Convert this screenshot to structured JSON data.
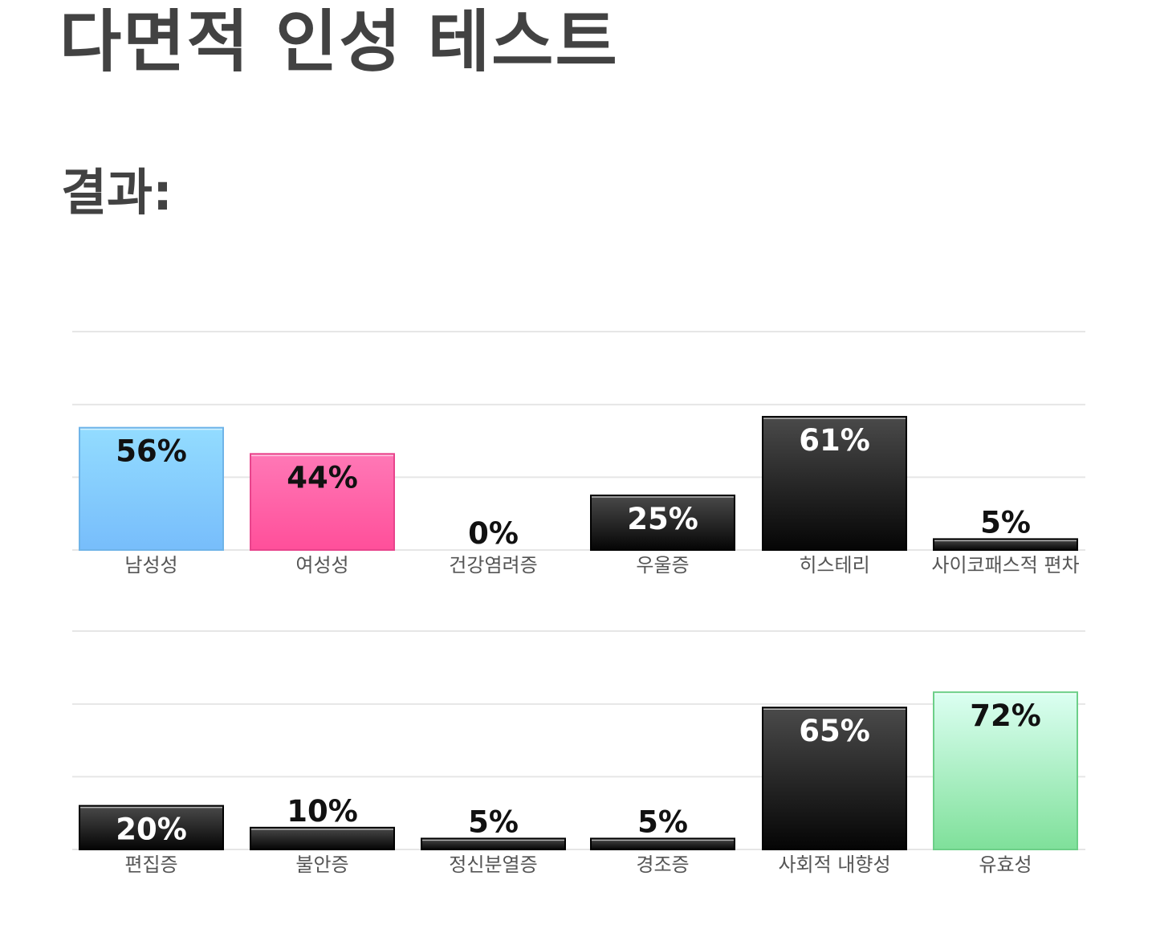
{
  "page": {
    "title": "다면적 인성 테스트",
    "result_heading": "결과:"
  },
  "colors": {
    "male": "#77bdfb",
    "female": "#ff4f9a",
    "dark": "#1a1a1a",
    "valid": "#7fe09a",
    "grid": "#e6e6e6"
  },
  "chart_data": [
    {
      "type": "bar",
      "categories": [
        "남성성",
        "여성성",
        "건강염려증",
        "우울증",
        "히스테리",
        "사이코패스적 편차"
      ],
      "values": [
        56,
        44,
        0,
        25,
        61,
        5
      ],
      "value_labels": [
        "56%",
        "44%",
        "0%",
        "25%",
        "61%",
        "5%"
      ],
      "bar_styles": [
        "male",
        "female",
        "dark",
        "dark",
        "dark",
        "dark"
      ],
      "ylim": [
        0,
        100
      ],
      "grid": true
    },
    {
      "type": "bar",
      "categories": [
        "편집증",
        "불안증",
        "정신분열증",
        "경조증",
        "사회적 내향성",
        "유효성"
      ],
      "values": [
        20,
        10,
        5,
        5,
        65,
        72
      ],
      "value_labels": [
        "20%",
        "10%",
        "5%",
        "5%",
        "65%",
        "72%"
      ],
      "bar_styles": [
        "dark",
        "dark",
        "dark",
        "dark",
        "dark",
        "valid"
      ],
      "ylim": [
        0,
        100
      ],
      "grid": true
    }
  ]
}
